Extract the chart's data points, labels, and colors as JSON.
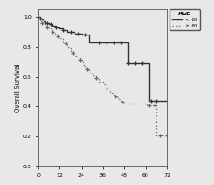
{
  "title": "",
  "xlabel": "",
  "ylabel": "Overall Survival",
  "xlim": [
    0,
    72
  ],
  "ylim": [
    0.0,
    1.05
  ],
  "xticks": [
    0,
    12,
    24,
    36,
    48,
    60,
    72
  ],
  "yticks": [
    0.0,
    0.2,
    0.4,
    0.6,
    0.8,
    1.0
  ],
  "legend_title": "AGE",
  "legend_labels": [
    "—  < 60",
    "··· ≥ 60"
  ],
  "bg_color": "#e8e8e8",
  "plot_bg": "#e8e8e8",
  "line1_color": "#333333",
  "line2_color": "#666666",
  "group1_times": [
    0,
    1,
    2,
    3,
    4,
    5,
    6,
    7,
    8,
    10,
    12,
    14,
    16,
    18,
    20,
    22,
    24,
    26,
    28,
    30,
    32,
    34,
    36,
    38,
    40,
    42,
    44,
    46,
    48,
    49,
    50,
    51,
    52,
    53,
    54,
    55,
    56,
    60,
    61,
    62,
    63,
    64,
    65,
    66,
    72
  ],
  "group1_surv": [
    1.0,
    0.99,
    0.98,
    0.97,
    0.96,
    0.96,
    0.95,
    0.95,
    0.94,
    0.93,
    0.92,
    0.91,
    0.9,
    0.9,
    0.89,
    0.89,
    0.88,
    0.88,
    0.83,
    0.83,
    0.83,
    0.83,
    0.83,
    0.83,
    0.83,
    0.83,
    0.83,
    0.83,
    0.83,
    0.83,
    0.69,
    0.69,
    0.69,
    0.69,
    0.69,
    0.69,
    0.69,
    0.69,
    0.69,
    0.44,
    0.44,
    0.44,
    0.44,
    0.44,
    0.44
  ],
  "group1_censors_t": [
    1,
    5,
    7,
    10,
    14,
    18,
    22,
    26,
    34,
    38,
    42,
    46,
    50,
    54,
    58,
    63,
    66
  ],
  "group1_censors_s": [
    0.99,
    0.96,
    0.95,
    0.93,
    0.91,
    0.9,
    0.89,
    0.88,
    0.83,
    0.83,
    0.83,
    0.83,
    0.69,
    0.69,
    0.69,
    0.44,
    0.44
  ],
  "group2_times": [
    0,
    1,
    2,
    3,
    4,
    5,
    6,
    7,
    8,
    9,
    10,
    11,
    12,
    13,
    14,
    15,
    16,
    17,
    18,
    19,
    20,
    21,
    22,
    23,
    24,
    25,
    26,
    27,
    28,
    30,
    32,
    34,
    36,
    38,
    40,
    41,
    42,
    43,
    44,
    45,
    46,
    47,
    48,
    60,
    61,
    62,
    63,
    64,
    65,
    66,
    67,
    68,
    72
  ],
  "group2_surv": [
    1.0,
    0.97,
    0.96,
    0.95,
    0.94,
    0.93,
    0.92,
    0.91,
    0.9,
    0.89,
    0.88,
    0.87,
    0.86,
    0.85,
    0.83,
    0.82,
    0.8,
    0.79,
    0.77,
    0.76,
    0.74,
    0.73,
    0.72,
    0.71,
    0.7,
    0.68,
    0.66,
    0.65,
    0.63,
    0.61,
    0.59,
    0.56,
    0.55,
    0.52,
    0.5,
    0.49,
    0.48,
    0.47,
    0.46,
    0.45,
    0.44,
    0.43,
    0.42,
    0.42,
    0.41,
    0.41,
    0.41,
    0.41,
    0.41,
    0.21,
    0.21,
    0.21,
    0.21
  ],
  "group2_censors_t": [
    2,
    5,
    8,
    11,
    15,
    19,
    23,
    27,
    32,
    38,
    43,
    47,
    62,
    65,
    68,
    72
  ],
  "group2_censors_s": [
    0.96,
    0.93,
    0.9,
    0.87,
    0.82,
    0.76,
    0.71,
    0.65,
    0.59,
    0.52,
    0.47,
    0.43,
    0.41,
    0.41,
    0.21,
    0.21
  ]
}
